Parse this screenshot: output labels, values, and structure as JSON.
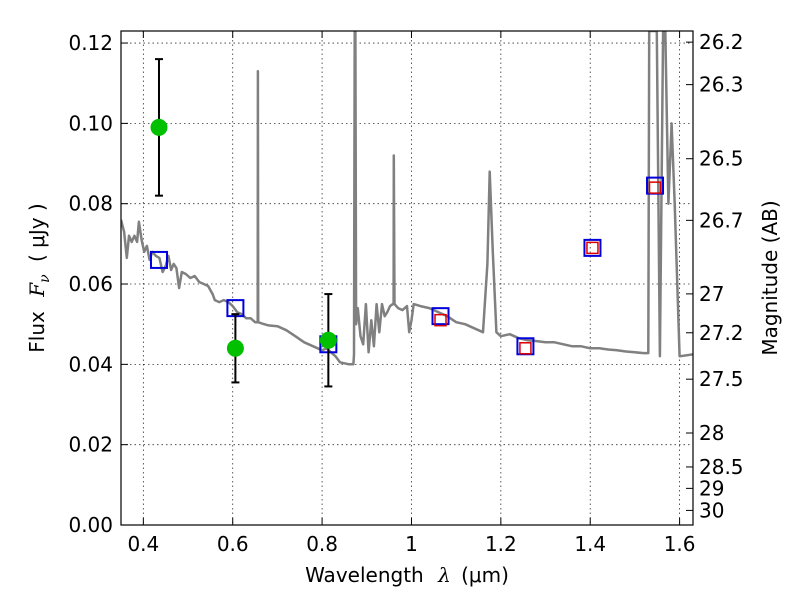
{
  "chart_data": {
    "type": "scatter",
    "xlabel_prefix": "Wavelength",
    "xlabel_lambda": "λ",
    "xlabel_unit": "(μm)",
    "ylabel_prefix": "Flux",
    "ylabel_symbol": "F",
    "ylabel_sub": "ν",
    "ylabel_unit": "( μJy )",
    "y2label": "Magnitude (AB)",
    "xlim": [
      0.35,
      1.63
    ],
    "ylim": [
      0.0,
      0.123
    ],
    "grid": true,
    "x_ticks": [
      "0.4",
      "0.6",
      "0.8",
      "1",
      "1.2",
      "1.4",
      "1.6"
    ],
    "y_ticks": [
      "0.00",
      "0.02",
      "0.04",
      "0.06",
      "0.08",
      "0.10",
      "0.12"
    ],
    "mag_ticks": [
      "26.2",
      "26.3",
      "26.5",
      "26.7",
      "27",
      "27.2",
      "27.5",
      "28",
      "28.5",
      "29",
      "30"
    ],
    "colors": {
      "spectrum": "#808080",
      "observed": "#00c000",
      "model_blue": "#0000dd",
      "model_red": "#dd0000",
      "errorbar": "#000000"
    },
    "series": [
      {
        "kind": "observed",
        "points": [
          {
            "x": 0.435,
            "y": 0.099,
            "err": 0.017
          },
          {
            "x": 0.606,
            "y": 0.044,
            "err": 0.0085
          },
          {
            "x": 0.814,
            "y": 0.046,
            "err": 0.0115
          }
        ]
      },
      {
        "kind": "model_photometry_blue",
        "points": [
          {
            "x": 0.435,
            "y": 0.066
          },
          {
            "x": 0.606,
            "y": 0.054
          },
          {
            "x": 0.814,
            "y": 0.045
          },
          {
            "x": 1.065,
            "y": 0.052
          },
          {
            "x": 1.255,
            "y": 0.0445
          },
          {
            "x": 1.405,
            "y": 0.069
          },
          {
            "x": 1.545,
            "y": 0.0845
          }
        ]
      },
      {
        "kind": "model_photometry_red",
        "points": [
          {
            "x": 1.065,
            "y": 0.051
          },
          {
            "x": 1.255,
            "y": 0.044
          },
          {
            "x": 1.405,
            "y": 0.069
          },
          {
            "x": 1.545,
            "y": 0.084
          }
        ]
      },
      {
        "kind": "spectrum",
        "points": [
          [
            0.35,
            0.076
          ],
          [
            0.357,
            0.073
          ],
          [
            0.363,
            0.0665
          ],
          [
            0.368,
            0.072
          ],
          [
            0.374,
            0.0705
          ],
          [
            0.38,
            0.072
          ],
          [
            0.386,
            0.0705
          ],
          [
            0.39,
            0.0755
          ],
          [
            0.396,
            0.071
          ],
          [
            0.402,
            0.068
          ],
          [
            0.408,
            0.0695
          ],
          [
            0.414,
            0.066
          ],
          [
            0.42,
            0.068
          ],
          [
            0.428,
            0.067
          ],
          [
            0.436,
            0.0665
          ],
          [
            0.443,
            0.063
          ],
          [
            0.45,
            0.0645
          ],
          [
            0.456,
            0.067
          ],
          [
            0.462,
            0.0635
          ],
          [
            0.468,
            0.065
          ],
          [
            0.474,
            0.064
          ],
          [
            0.48,
            0.059
          ],
          [
            0.486,
            0.063
          ],
          [
            0.495,
            0.0625
          ],
          [
            0.505,
            0.0615
          ],
          [
            0.515,
            0.062
          ],
          [
            0.525,
            0.0605
          ],
          [
            0.535,
            0.06
          ],
          [
            0.545,
            0.0595
          ],
          [
            0.555,
            0.0575
          ],
          [
            0.56,
            0.056
          ],
          [
            0.57,
            0.0555
          ],
          [
            0.58,
            0.056
          ],
          [
            0.59,
            0.0555
          ],
          [
            0.6,
            0.0545
          ],
          [
            0.61,
            0.053
          ],
          [
            0.62,
            0.0525
          ],
          [
            0.63,
            0.0515
          ],
          [
            0.64,
            0.0515
          ],
          [
            0.65,
            0.0505
          ],
          [
            0.656,
            0.0505
          ],
          [
            0.6563,
            0.113
          ],
          [
            0.657,
            0.0505
          ],
          [
            0.665,
            0.0502
          ],
          [
            0.68,
            0.0497
          ],
          [
            0.7,
            0.0495
          ],
          [
            0.72,
            0.0485
          ],
          [
            0.74,
            0.047
          ],
          [
            0.76,
            0.0455
          ],
          [
            0.78,
            0.0445
          ],
          [
            0.8,
            0.0435
          ],
          [
            0.81,
            0.044
          ],
          [
            0.82,
            0.043
          ],
          [
            0.83,
            0.042
          ],
          [
            0.84,
            0.0405
          ],
          [
            0.86,
            0.04
          ],
          [
            0.87,
            0.04
          ],
          [
            0.8715,
            0.0425
          ],
          [
            0.873,
            0.123
          ],
          [
            0.8745,
            0.123
          ],
          [
            0.876,
            0.05
          ],
          [
            0.88,
            0.054
          ],
          [
            0.886,
            0.047
          ],
          [
            0.892,
            0.045
          ],
          [
            0.898,
            0.055
          ],
          [
            0.904,
            0.043
          ],
          [
            0.91,
            0.051
          ],
          [
            0.916,
            0.0445
          ],
          [
            0.922,
            0.055
          ],
          [
            0.928,
            0.048
          ],
          [
            0.934,
            0.055
          ],
          [
            0.94,
            0.052
          ],
          [
            0.946,
            0.053
          ],
          [
            0.952,
            0.0545
          ],
          [
            0.958,
            0.055
          ],
          [
            0.96,
            0.055
          ],
          [
            0.9605,
            0.092
          ],
          [
            0.962,
            0.055
          ],
          [
            0.97,
            0.054
          ],
          [
            0.98,
            0.0535
          ],
          [
            0.99,
            0.0545
          ],
          [
            0.995,
            0.048
          ],
          [
            1.0,
            0.051
          ],
          [
            1.005,
            0.055
          ],
          [
            1.02,
            0.0545
          ],
          [
            1.04,
            0.054
          ],
          [
            1.06,
            0.053
          ],
          [
            1.08,
            0.052
          ],
          [
            1.1,
            0.0505
          ],
          [
            1.12,
            0.05
          ],
          [
            1.14,
            0.049
          ],
          [
            1.16,
            0.048
          ],
          [
            1.17,
            0.065
          ],
          [
            1.175,
            0.088
          ],
          [
            1.182,
            0.068
          ],
          [
            1.19,
            0.048
          ],
          [
            1.2,
            0.047
          ],
          [
            1.22,
            0.0475
          ],
          [
            1.24,
            0.0465
          ],
          [
            1.26,
            0.046
          ],
          [
            1.28,
            0.0458
          ],
          [
            1.3,
            0.0455
          ],
          [
            1.32,
            0.0455
          ],
          [
            1.34,
            0.045
          ],
          [
            1.36,
            0.0445
          ],
          [
            1.38,
            0.0445
          ],
          [
            1.4,
            0.044
          ],
          [
            1.42,
            0.044
          ],
          [
            1.44,
            0.0437
          ],
          [
            1.46,
            0.0435
          ],
          [
            1.48,
            0.0432
          ],
          [
            1.5,
            0.043
          ],
          [
            1.52,
            0.0428
          ],
          [
            1.53,
            0.0428
          ],
          [
            1.532,
            0.123
          ],
          [
            1.549,
            0.123
          ],
          [
            1.556,
            0.042
          ],
          [
            1.563,
            0.123
          ],
          [
            1.568,
            0.123
          ],
          [
            1.575,
            0.08
          ],
          [
            1.582,
            0.1
          ],
          [
            1.589,
            0.08
          ],
          [
            1.6,
            0.042
          ],
          [
            1.63,
            0.0425
          ]
        ]
      }
    ]
  }
}
